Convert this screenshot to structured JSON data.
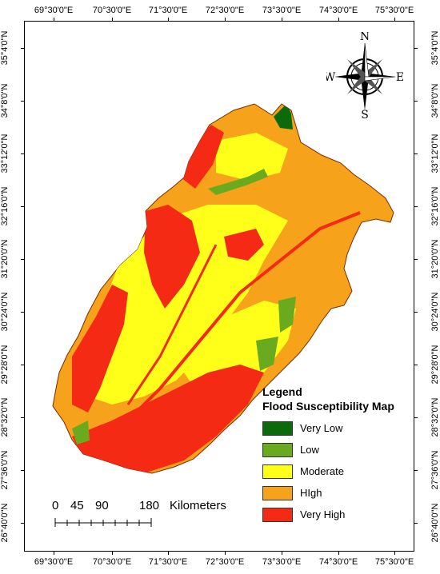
{
  "graticule": {
    "top_labels": [
      "69°30'0\"E",
      "70°30'0\"E",
      "71°30'0\"E",
      "72°30'0\"E",
      "73°30'0\"E",
      "74°30'0\"E",
      "75°30'0\"E"
    ],
    "bottom_labels": [
      "69°30'0\"E",
      "70°30'0\"E",
      "71°30'0\"E",
      "72°30'0\"E",
      "73°30'0\"E",
      "74°30'0\"E",
      "75°30'0\"E"
    ],
    "left_labels": [
      "35°4'0\"N",
      "34°8'0\"N",
      "33°12'0\"N",
      "32°16'0\"N",
      "31°20'0\"N",
      "30°24'0\"N",
      "29°28'0\"N",
      "28°32'0\"N",
      "27°36'0\"N",
      "26°40'0\"N"
    ],
    "right_labels": [
      "35°4'0\"N",
      "34°8'0\"N",
      "33°12'0\"N",
      "32°16'0\"N",
      "31°20'0\"N",
      "30°24'0\"N",
      "29°28'0\"N",
      "28°32'0\"N",
      "27°36'0\"N",
      "26°40'0\"N"
    ]
  },
  "compass": {
    "n": "N",
    "s": "S",
    "e": "E",
    "w": "W"
  },
  "legend": {
    "heading": "Legend",
    "subheading": "Flood Susceptibility Map",
    "items": [
      {
        "label": "Very Low",
        "color": "#0b6b0b"
      },
      {
        "label": "Low",
        "color": "#6aaa1e"
      },
      {
        "label": "Moderate",
        "color": "#ffff1a"
      },
      {
        "label": "HIgh",
        "color": "#f7a21b"
      },
      {
        "label": "Very High",
        "color": "#f52a14"
      }
    ]
  },
  "scalebar": {
    "ticks": [
      "0",
      "45",
      "90",
      "180"
    ],
    "unit": "Kilometers"
  }
}
